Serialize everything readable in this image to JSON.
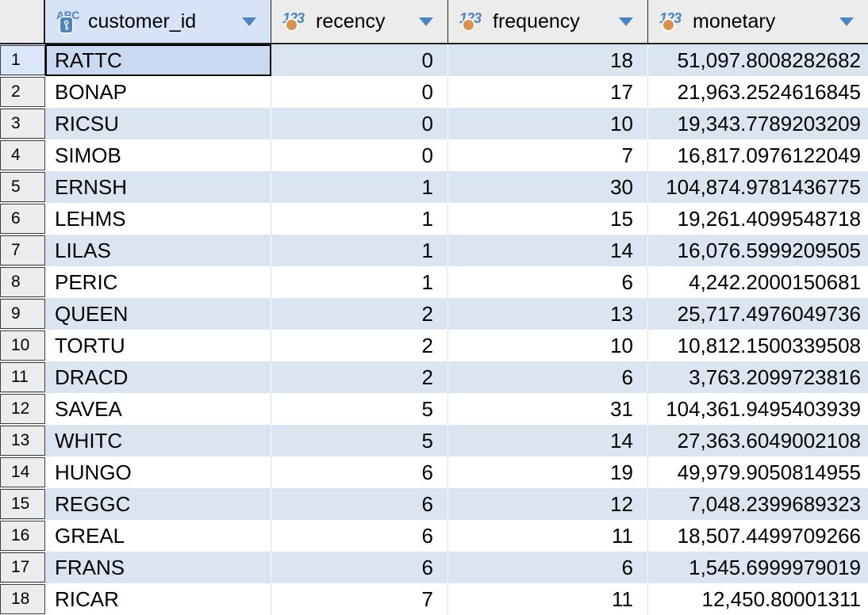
{
  "grid": {
    "columns": [
      {
        "label": "customer_id",
        "type": "string",
        "is_key": true,
        "icon": "string-key-icon",
        "filter_icon": "dropdown-arrow"
      },
      {
        "label": "recency",
        "type": "number",
        "is_key": false,
        "icon": "number-icon",
        "filter_icon": "dropdown-arrow"
      },
      {
        "label": "frequency",
        "type": "number",
        "is_key": false,
        "icon": "number-icon",
        "filter_icon": "dropdown-arrow"
      },
      {
        "label": "monetary",
        "type": "number",
        "is_key": false,
        "icon": "number-icon",
        "filter_icon": "dropdown-arrow"
      }
    ],
    "type_icon_text": {
      "string": "ABC",
      "number": "123"
    },
    "rows": [
      {
        "num": "1",
        "customer_id": "RATTC",
        "recency": "0",
        "frequency": "18",
        "monetary": "51,097.8008282682"
      },
      {
        "num": "2",
        "customer_id": "BONAP",
        "recency": "0",
        "frequency": "17",
        "monetary": "21,963.2524616845"
      },
      {
        "num": "3",
        "customer_id": "RICSU",
        "recency": "0",
        "frequency": "10",
        "monetary": "19,343.7789203209"
      },
      {
        "num": "4",
        "customer_id": "SIMOB",
        "recency": "0",
        "frequency": "7",
        "monetary": "16,817.0976122049"
      },
      {
        "num": "5",
        "customer_id": "ERNSH",
        "recency": "1",
        "frequency": "30",
        "monetary": "104,874.9781436775"
      },
      {
        "num": "6",
        "customer_id": "LEHMS",
        "recency": "1",
        "frequency": "15",
        "monetary": "19,261.4099548718"
      },
      {
        "num": "7",
        "customer_id": "LILAS",
        "recency": "1",
        "frequency": "14",
        "monetary": "16,076.5999209505"
      },
      {
        "num": "8",
        "customer_id": "PERIC",
        "recency": "1",
        "frequency": "6",
        "monetary": "4,242.2000150681"
      },
      {
        "num": "9",
        "customer_id": "QUEEN",
        "recency": "2",
        "frequency": "13",
        "monetary": "25,717.4976049736"
      },
      {
        "num": "10",
        "customer_id": "TORTU",
        "recency": "2",
        "frequency": "10",
        "monetary": "10,812.1500339508"
      },
      {
        "num": "11",
        "customer_id": "DRACD",
        "recency": "2",
        "frequency": "6",
        "monetary": "3,763.2099723816"
      },
      {
        "num": "12",
        "customer_id": "SAVEA",
        "recency": "5",
        "frequency": "31",
        "monetary": "104,361.9495403939"
      },
      {
        "num": "13",
        "customer_id": "WHITC",
        "recency": "5",
        "frequency": "14",
        "monetary": "27,363.6049002108"
      },
      {
        "num": "14",
        "customer_id": "HUNGO",
        "recency": "6",
        "frequency": "19",
        "monetary": "49,979.9050814955"
      },
      {
        "num": "15",
        "customer_id": "REGGC",
        "recency": "6",
        "frequency": "12",
        "monetary": "7,048.2399689323"
      },
      {
        "num": "16",
        "customer_id": "GREAL",
        "recency": "6",
        "frequency": "11",
        "monetary": "18,507.4499709266"
      },
      {
        "num": "17",
        "customer_id": "FRANS",
        "recency": "6",
        "frequency": "6",
        "monetary": "1,545.6999979019"
      },
      {
        "num": "18",
        "customer_id": "RICAR",
        "recency": "7",
        "frequency": "11",
        "monetary": "12,450.80001311"
      }
    ],
    "selection": {
      "row_num": "1",
      "column": "customer_id",
      "value": "RATTC"
    }
  },
  "colors": {
    "header_bg": "#ececec",
    "selected_header_bg": "#d7e4f8",
    "stripe_blue": "#dbe5f2",
    "selected_cell_bg": "#c8d9f0",
    "selected_rownum_bg": "#dae6f9",
    "rownum_bg": "#ececec",
    "rownum_border": "#3d3d3d",
    "dark_border": "#222222",
    "grid_line": "#dedede",
    "accent_blue": "#4a86c6",
    "icon_blue": "#4a86c5",
    "icon_orange": "#de9045"
  }
}
